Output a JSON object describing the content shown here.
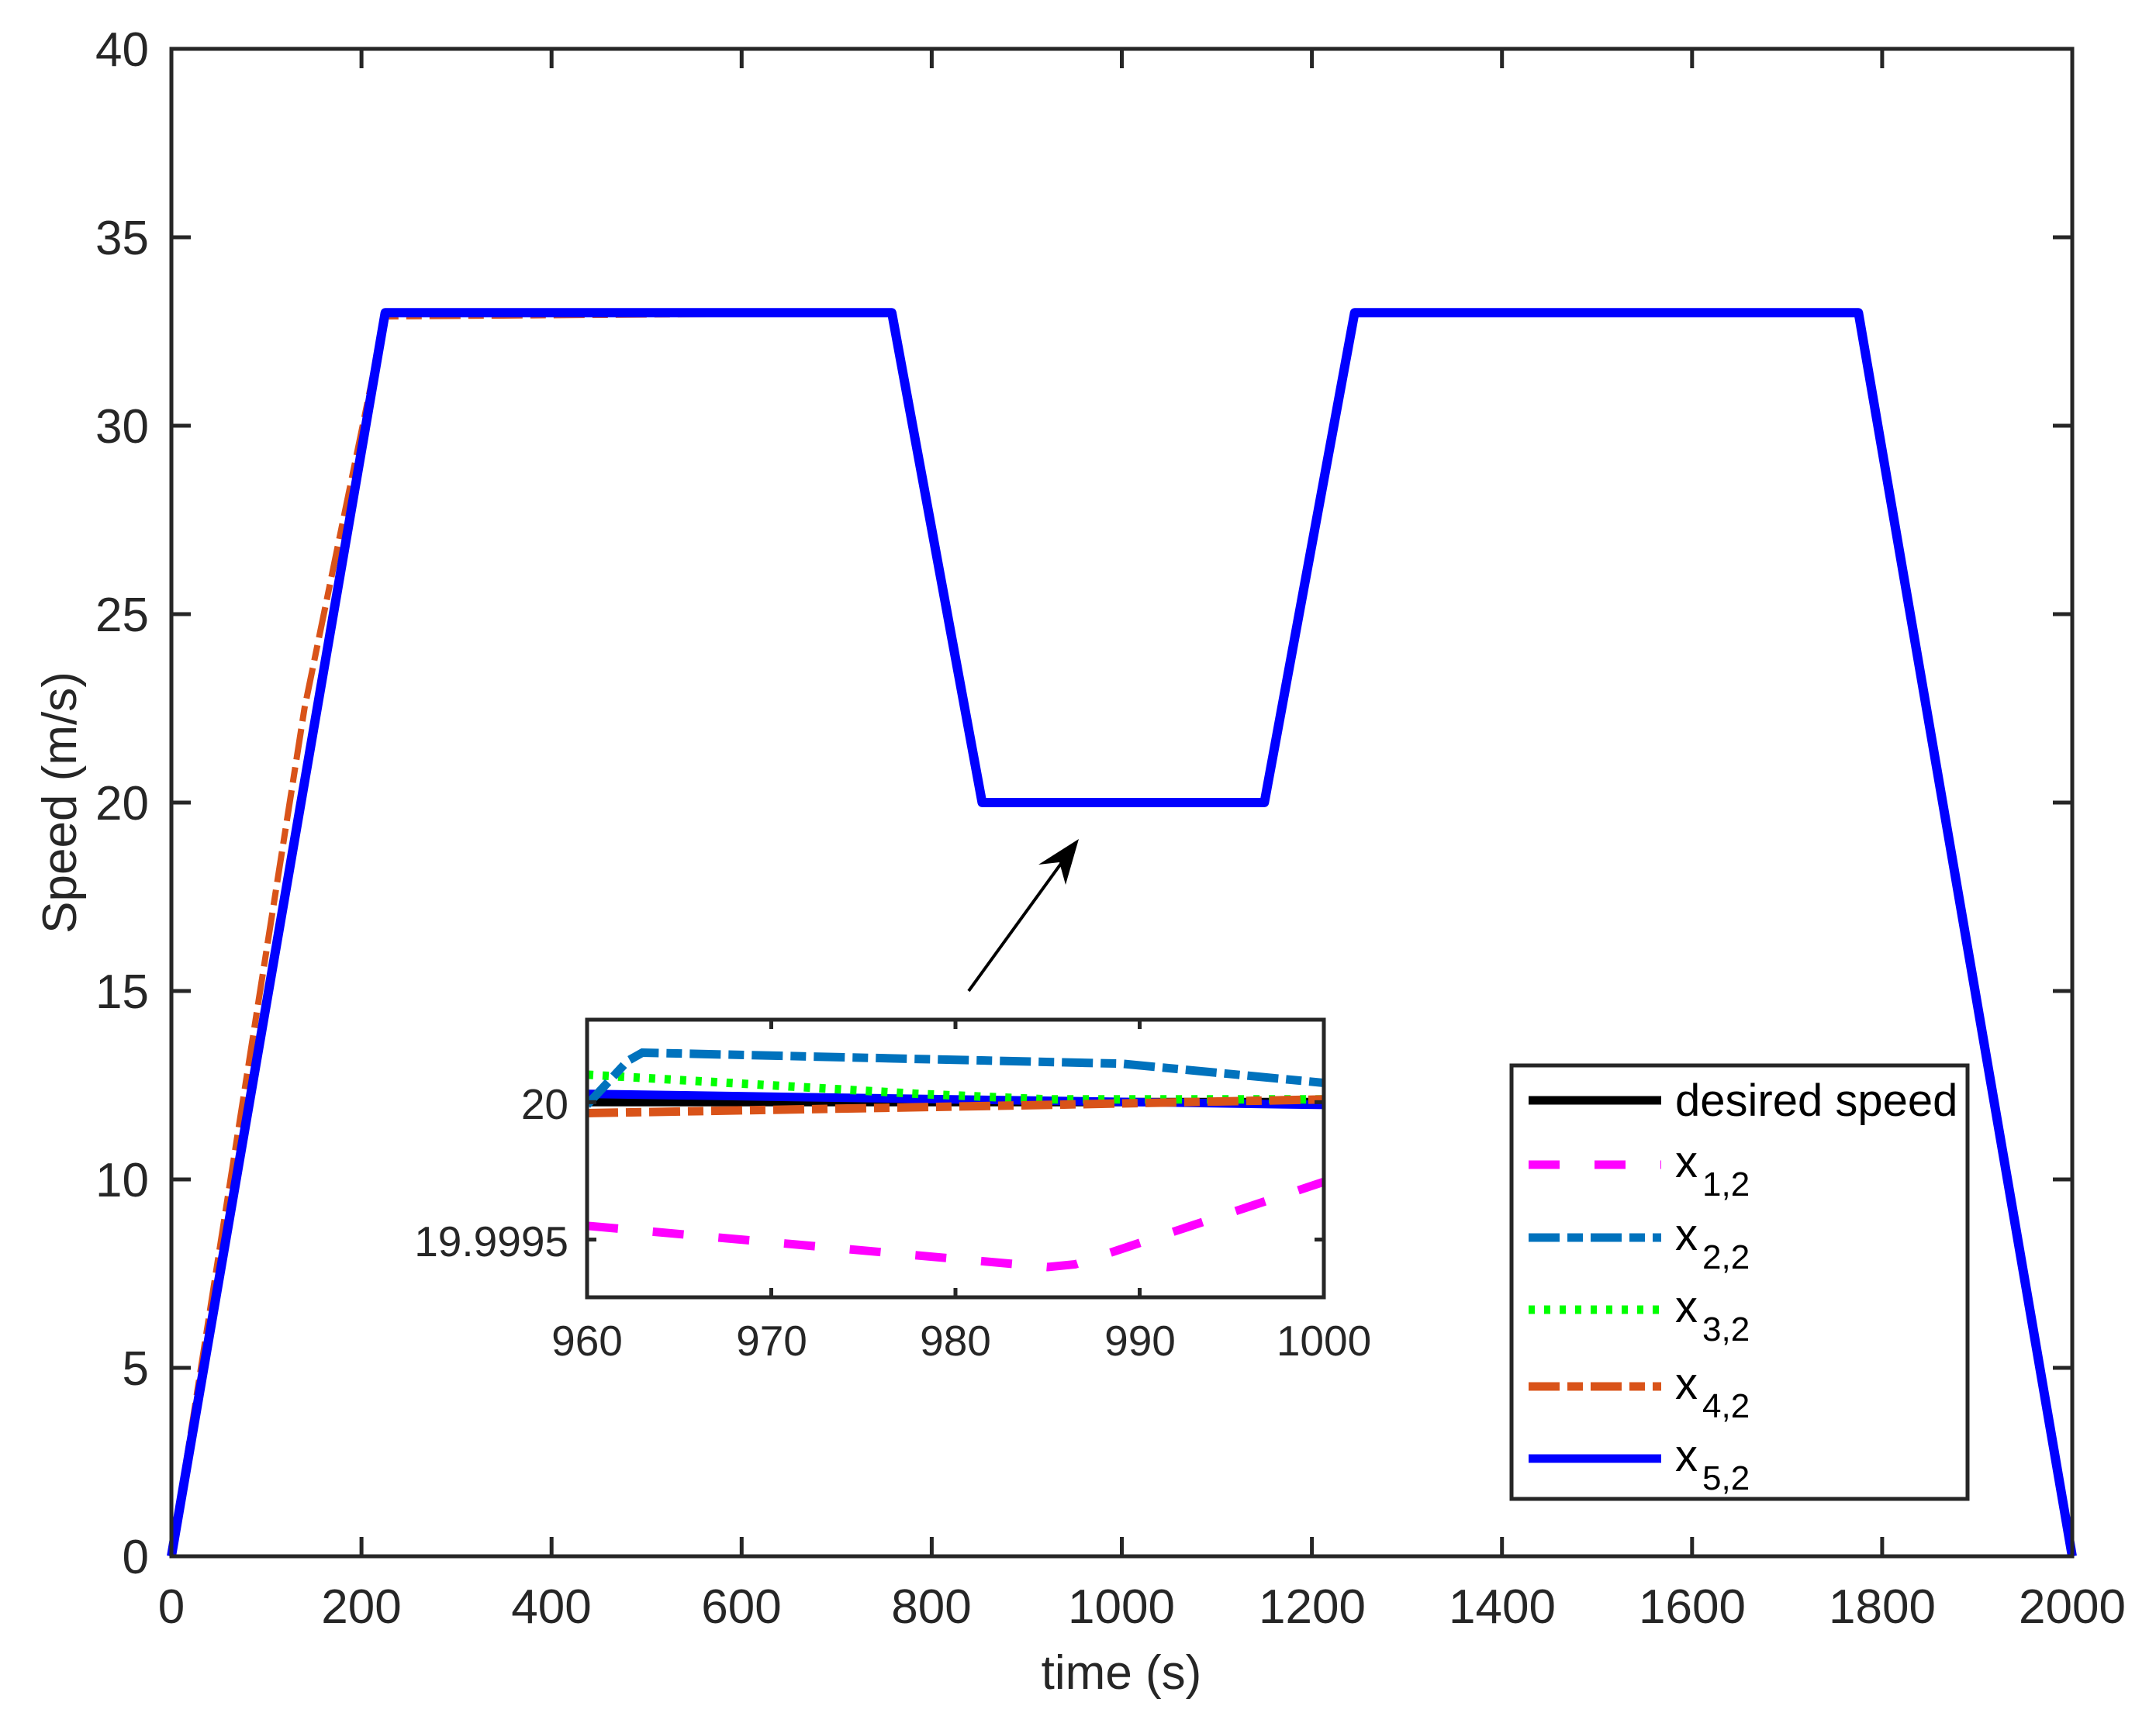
{
  "chart_data": {
    "type": "line",
    "title": "",
    "xlabel": "time (s)",
    "ylabel": "Speed (m/s)",
    "xlim": [
      0,
      2000
    ],
    "ylim": [
      0,
      40
    ],
    "grid": false,
    "legend_position": "lower-right inside axes",
    "x_ticks": [
      "0",
      "200",
      "400",
      "600",
      "800",
      "1000",
      "1200",
      "1400",
      "1600",
      "1800",
      "2000"
    ],
    "y_ticks": [
      "0",
      "5",
      "10",
      "15",
      "20",
      "25",
      "30",
      "35",
      "40"
    ],
    "series": [
      {
        "name": "desired speed",
        "color": "#000000",
        "style": "solid",
        "x": [
          0,
          225,
          758,
          853,
          1150,
          1245,
          1775,
          2000
        ],
        "y": [
          0,
          33,
          33,
          20,
          20,
          33,
          33,
          0
        ]
      },
      {
        "name": "x_{1,2}",
        "color": "#ff00ff",
        "style": "dashed",
        "x": [
          0,
          225,
          758,
          853,
          1150,
          1245,
          1775,
          2000
        ],
        "y": [
          0,
          33,
          33,
          20,
          20,
          33,
          33,
          0
        ]
      },
      {
        "name": "x_{2,2}",
        "color": "#0072bd",
        "style": "dash-dot",
        "x": [
          0,
          225,
          758,
          853,
          1150,
          1245,
          1775,
          2000
        ],
        "y": [
          0,
          33,
          33,
          20,
          20,
          33,
          33,
          0
        ]
      },
      {
        "name": "x_{3,2}",
        "color": "#00ff00",
        "style": "dotted",
        "x": [
          0,
          225,
          758,
          853,
          1150,
          1245,
          1775,
          2000
        ],
        "y": [
          0,
          33,
          33,
          20,
          20,
          33,
          33,
          0
        ]
      },
      {
        "name": "x_{4,2}",
        "color": "#d95319",
        "style": "dash-dot",
        "x": [
          0,
          140,
          175,
          225,
          758,
          853,
          1150,
          1245,
          1775,
          2000
        ],
        "y": [
          0,
          22.5,
          26.8,
          32.9,
          33,
          20,
          20,
          33,
          33,
          0
        ]
      },
      {
        "name": "x_{5,2}",
        "color": "#0000ff",
        "style": "solid",
        "x": [
          0,
          225,
          758,
          853,
          1150,
          1245,
          1775,
          2000
        ],
        "y": [
          0,
          33,
          33,
          20,
          20,
          33,
          33,
          0
        ]
      }
    ],
    "annotation": {
      "type": "arrow",
      "from_data": [
        944,
        15.4
      ],
      "to_data": [
        960,
        19.8
      ],
      "points_to": "zoomed inset"
    },
    "inset": {
      "xlim": [
        960,
        1000
      ],
      "ylim": [
        19.99929,
        20.0003
      ],
      "x_ticks": [
        "960",
        "970",
        "980",
        "990",
        "1000"
      ],
      "y_ticks": [
        "19.9995",
        "20"
      ],
      "series": [
        {
          "name": "desired speed",
          "x": [
            960,
            1000
          ],
          "y": [
            20.0,
            20.0
          ]
        },
        {
          "name": "x_{1,2}",
          "x": [
            960,
            985,
            986.5,
            1000
          ],
          "y": [
            19.99955,
            19.9994,
            19.99941,
            19.99971
          ]
        },
        {
          "name": "x_{2,2}",
          "x": [
            960,
            962.2,
            963,
            989,
            1000
          ],
          "y": [
            19.99999,
            20.00015,
            20.00018,
            20.00014,
            20.00007
          ]
        },
        {
          "name": "x_{3,2}",
          "x": [
            960,
            978,
            985,
            1000
          ],
          "y": [
            20.0001,
            20.00003,
            20.00001,
            20.00001
          ]
        },
        {
          "name": "x_{4,2}",
          "x": [
            960,
            985,
            1000
          ],
          "y": [
            19.99996,
            19.99999,
            20.00001
          ]
        },
        {
          "name": "x_{5,2}",
          "x": [
            960,
            1000
          ],
          "y": [
            20.00003,
            19.99999
          ]
        }
      ]
    }
  },
  "axes": {
    "xlabel": "time (s)",
    "ylabel": "Speed (m/s)",
    "x_ticks": [
      "0",
      "200",
      "400",
      "600",
      "800",
      "1000",
      "1200",
      "1400",
      "1600",
      "1800",
      "2000"
    ],
    "y_ticks": [
      "0",
      "5",
      "10",
      "15",
      "20",
      "25",
      "30",
      "35",
      "40"
    ]
  },
  "inset": {
    "x_ticks": [
      "960",
      "970",
      "980",
      "990",
      "1000"
    ],
    "y_ticks": [
      "19.9995",
      "20"
    ]
  },
  "legend": {
    "items": [
      {
        "base": "desired speed",
        "sub": "",
        "color": "#000000",
        "dash": ""
      },
      {
        "base": "x",
        "sub": "1,2",
        "color": "#ff00ff",
        "dash": "40 45"
      },
      {
        "base": "x",
        "sub": "2,2",
        "color": "#0072bd",
        "dash": "40 10 20 10"
      },
      {
        "base": "x",
        "sub": "3,2",
        "color": "#00ff00",
        "dash": "8 12"
      },
      {
        "base": "x",
        "sub": "4,2",
        "color": "#d95319",
        "dash": "40 10 20 10"
      },
      {
        "base": "x",
        "sub": "5,2",
        "color": "#0000ff",
        "dash": ""
      }
    ]
  }
}
